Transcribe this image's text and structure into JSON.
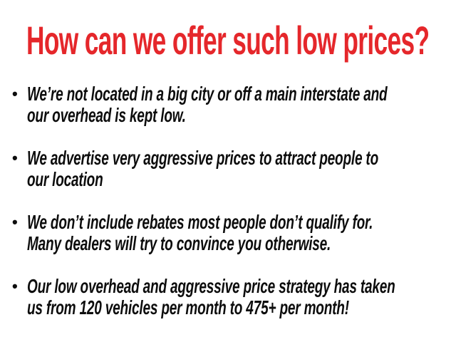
{
  "page": {
    "background": "#ffffff"
  },
  "headline": {
    "text": "How can we offer such low prices?",
    "color": "#e5272b"
  },
  "bullets": {
    "marker": "•",
    "color": "#0d0d0d",
    "items": [
      {
        "lines": [
          "We’re not located in a big city or off a main interstate and",
          "our overhead is kept low."
        ]
      },
      {
        "lines": [
          "We advertise very aggressive prices to attract people to",
          "our location"
        ]
      },
      {
        "lines": [
          "We don’t include rebates most people don’t qualify for.",
          "Many dealers will try to convince you otherwise."
        ]
      },
      {
        "lines": [
          "Our low overhead and aggressive price strategy has taken",
          "us from 120 vehicles per month to 475+ per month!"
        ]
      }
    ]
  }
}
